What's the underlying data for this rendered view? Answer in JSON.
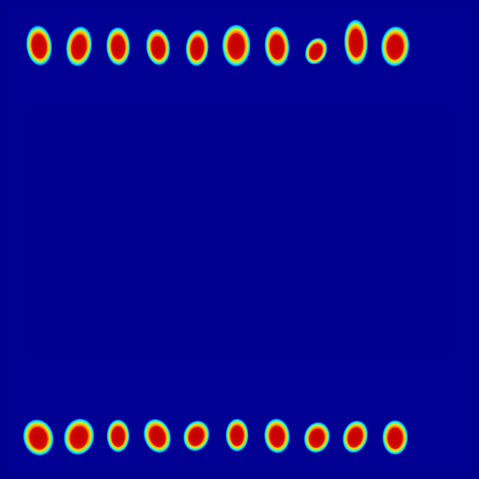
{
  "image": {
    "kind": "thermal-heatmap",
    "colormap": "jet",
    "background_color": "#00008f",
    "blob_rows": [
      {
        "name": "top-row",
        "blob_count": 10
      },
      {
        "name": "bottom-row",
        "blob_count": 10
      }
    ]
  }
}
